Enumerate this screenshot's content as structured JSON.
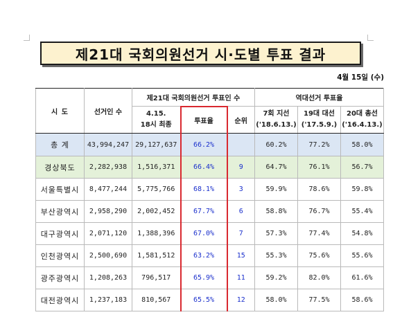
{
  "title": "제21대 국회의원선거 시·도별 투표 결과",
  "date": "4월 15일 (수)",
  "headers": {
    "region": "시  도",
    "electorate": "선거인 수",
    "current_group": "제21대 국회의원선거 투표인 수",
    "current_voters": "4.15.\n18시 최종",
    "turnout": "투표율",
    "rank": "순위",
    "past_group": "역대선거 투표율",
    "past1": "7회 지선\n('18.6.13.)",
    "past2": "19대 대선\n('17.5.9.)",
    "past3": "20대 총선\n('16.4.13.)"
  },
  "rows": [
    {
      "region": "총  계",
      "electorate": "43,994,247",
      "voters": "29,127,637",
      "turnout": "66.2%",
      "rank": "",
      "past1": "60.2%",
      "past2": "77.2%",
      "past3": "58.0%"
    },
    {
      "region": "경상북도",
      "electorate": "2,282,938",
      "voters": "1,516,371",
      "turnout": "66.4%",
      "rank": "9",
      "past1": "64.7%",
      "past2": "76.1%",
      "past3": "56.7%"
    },
    {
      "region": "서울특별시",
      "electorate": "8,477,244",
      "voters": "5,775,766",
      "turnout": "68.1%",
      "rank": "3",
      "past1": "59.9%",
      "past2": "78.6%",
      "past3": "59.8%"
    },
    {
      "region": "부산광역시",
      "electorate": "2,958,290",
      "voters": "2,002,452",
      "turnout": "67.7%",
      "rank": "6",
      "past1": "58.8%",
      "past2": "76.7%",
      "past3": "55.4%"
    },
    {
      "region": "대구광역시",
      "electorate": "2,071,120",
      "voters": "1,388,396",
      "turnout": "67.0%",
      "rank": "7",
      "past1": "57.3%",
      "past2": "77.4%",
      "past3": "54.8%"
    },
    {
      "region": "인천광역시",
      "electorate": "2,500,690",
      "voters": "1,581,512",
      "turnout": "63.2%",
      "rank": "15",
      "past1": "55.3%",
      "past2": "75.6%",
      "past3": "55.6%"
    },
    {
      "region": "광주광역시",
      "electorate": "1,208,263",
      "voters": "796,517",
      "turnout": "65.9%",
      "rank": "11",
      "past1": "59.2%",
      "past2": "82.0%",
      "past3": "61.6%"
    },
    {
      "region": "대전광역시",
      "electorate": "1,237,183",
      "voters": "810,567",
      "turnout": "65.5%",
      "rank": "12",
      "past1": "58.0%",
      "past2": "77.5%",
      "past3": "58.6%"
    }
  ]
}
